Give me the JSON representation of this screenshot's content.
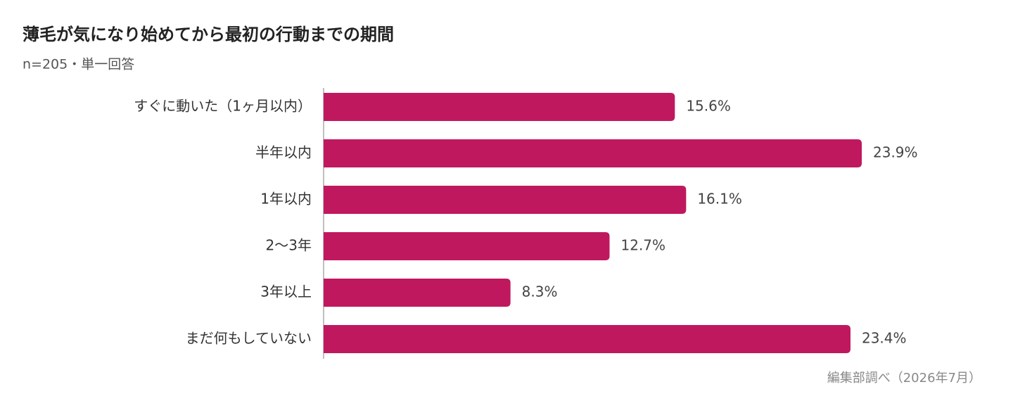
{
  "chart_data": {
    "type": "barh",
    "title": "薄毛が気になり始めてから最初の行動までの期間",
    "subtitle": "n=205・単一回答",
    "source": "編集部調べ（2026年7月）",
    "categories": [
      "すぐに動いた（1ヶ月以内）",
      "半年以内",
      "1年以内",
      "2〜3年",
      "3年以上",
      "まだ何もしていない"
    ],
    "values": [
      15.6,
      23.9,
      16.1,
      12.7,
      8.3,
      23.4
    ],
    "value_labels": [
      "15.6%",
      "23.9%",
      "16.1%",
      "12.7%",
      "8.3%",
      "23.4%"
    ],
    "color": "#c0185f"
  }
}
